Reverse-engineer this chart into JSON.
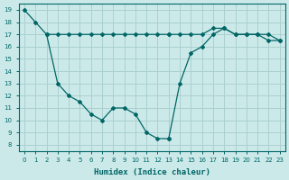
{
  "xlabel": "Humidex (Indice chaleur)",
  "bg_color": "#cce9e9",
  "grid_color": "#aad0d0",
  "line_color": "#006666",
  "xlim": [
    -0.5,
    23.5
  ],
  "ylim": [
    7.5,
    19.5
  ],
  "xticks": [
    0,
    1,
    2,
    3,
    4,
    5,
    6,
    7,
    8,
    9,
    10,
    11,
    12,
    13,
    14,
    15,
    16,
    17,
    18,
    19,
    20,
    21,
    22,
    23
  ],
  "yticks": [
    8,
    9,
    10,
    11,
    12,
    13,
    14,
    15,
    16,
    17,
    18,
    19
  ],
  "line1_x": [
    0,
    1,
    2,
    3,
    4,
    5,
    6,
    7,
    8,
    9,
    10,
    11,
    12,
    13
  ],
  "line1_y": [
    19,
    18,
    17,
    17,
    17,
    17,
    17,
    17,
    17,
    17,
    17,
    17,
    17,
    17
  ],
  "line2_x": [
    2,
    3,
    4,
    5,
    6,
    7,
    8,
    9,
    10,
    11,
    12,
    13
  ],
  "line2_y": [
    17,
    13,
    12,
    11.5,
    10.5,
    10,
    11,
    11,
    10.5,
    9,
    8.5,
    8.5
  ],
  "line3_x": [
    13,
    14,
    15,
    16,
    17,
    18,
    19,
    20,
    21,
    22,
    23
  ],
  "line3_y": [
    8.5,
    13,
    15.5,
    16,
    17,
    17.5,
    17,
    17,
    17,
    16.5,
    16.5
  ],
  "line4_x": [
    13,
    14,
    15,
    16,
    17,
    18,
    19,
    20,
    21,
    22,
    23
  ],
  "line4_y": [
    17,
    17,
    17,
    17,
    17.5,
    17.5,
    17,
    17,
    17,
    17,
    16.5
  ]
}
